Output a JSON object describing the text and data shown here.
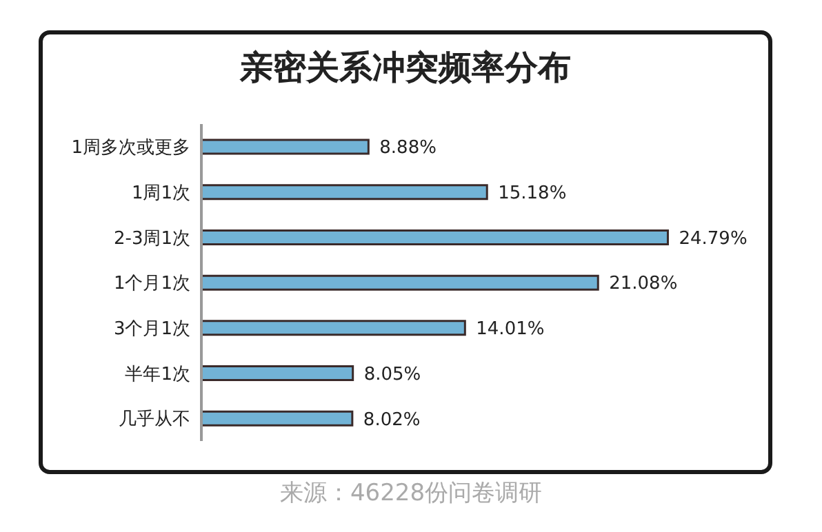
{
  "chart_data": {
    "type": "bar",
    "orientation": "horizontal",
    "title": "亲密关系冲突频率分布",
    "categories": [
      "1周多次或更多",
      "1周1次",
      "2-3周1次",
      "1个月1次",
      "3个月1次",
      "半年1次",
      "几乎从不"
    ],
    "values": [
      8.88,
      15.18,
      24.79,
      21.08,
      14.01,
      8.05,
      8.02
    ],
    "value_labels": [
      "8.88%",
      "15.18%",
      "24.79%",
      "21.08%",
      "14.01%",
      "8.05%",
      "8.02%"
    ],
    "color": "#72b3d6",
    "tick_labels": "y",
    "annotations": [
      "来源：46228份问卷调研"
    ]
  }
}
